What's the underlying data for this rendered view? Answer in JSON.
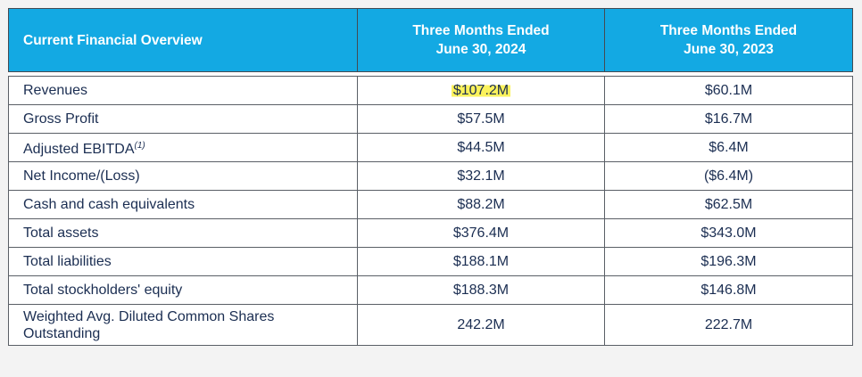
{
  "header": {
    "label_col": "Current Financial Overview",
    "period_1": {
      "line1": "Three Months Ended",
      "line2": "June 30, 2024"
    },
    "period_2": {
      "line1": "Three Months Ended",
      "line2": "June 30, 2023"
    }
  },
  "rows": [
    {
      "label": "Revenues",
      "footnote": "",
      "v2024": "$107.2M",
      "v2023": "$60.1M",
      "highlighted": true
    },
    {
      "label": "Gross Profit",
      "footnote": "",
      "v2024": "$57.5M",
      "v2023": "$16.7M"
    },
    {
      "label": "Adjusted EBITDA",
      "footnote": "(1)",
      "v2024": "$44.5M",
      "v2023": "$6.4M"
    },
    {
      "label": "Net Income/(Loss)",
      "footnote": "",
      "v2024": "$32.1M",
      "v2023": "($6.4M)"
    },
    {
      "label": "Cash and cash equivalents",
      "footnote": "",
      "v2024": "$88.2M",
      "v2023": "$62.5M"
    },
    {
      "label": "Total assets",
      "footnote": "",
      "v2024": "$376.4M",
      "v2023": "$343.0M"
    },
    {
      "label": "Total liabilities",
      "footnote": "",
      "v2024": "$188.1M",
      "v2023": "$196.3M"
    },
    {
      "label": "Total stockholders' equity",
      "footnote": "",
      "v2024": "$188.3M",
      "v2023": "$146.8M"
    },
    {
      "label_line1": "Weighted Avg. Diluted Common Shares",
      "label_line2": "Outstanding",
      "v2024": "242.2M",
      "v2023": "222.7M"
    }
  ],
  "colors": {
    "header_bg": "#13a9e3",
    "header_text": "#ffffff",
    "body_text": "#1b2e52",
    "highlight": "#fbf25c"
  }
}
